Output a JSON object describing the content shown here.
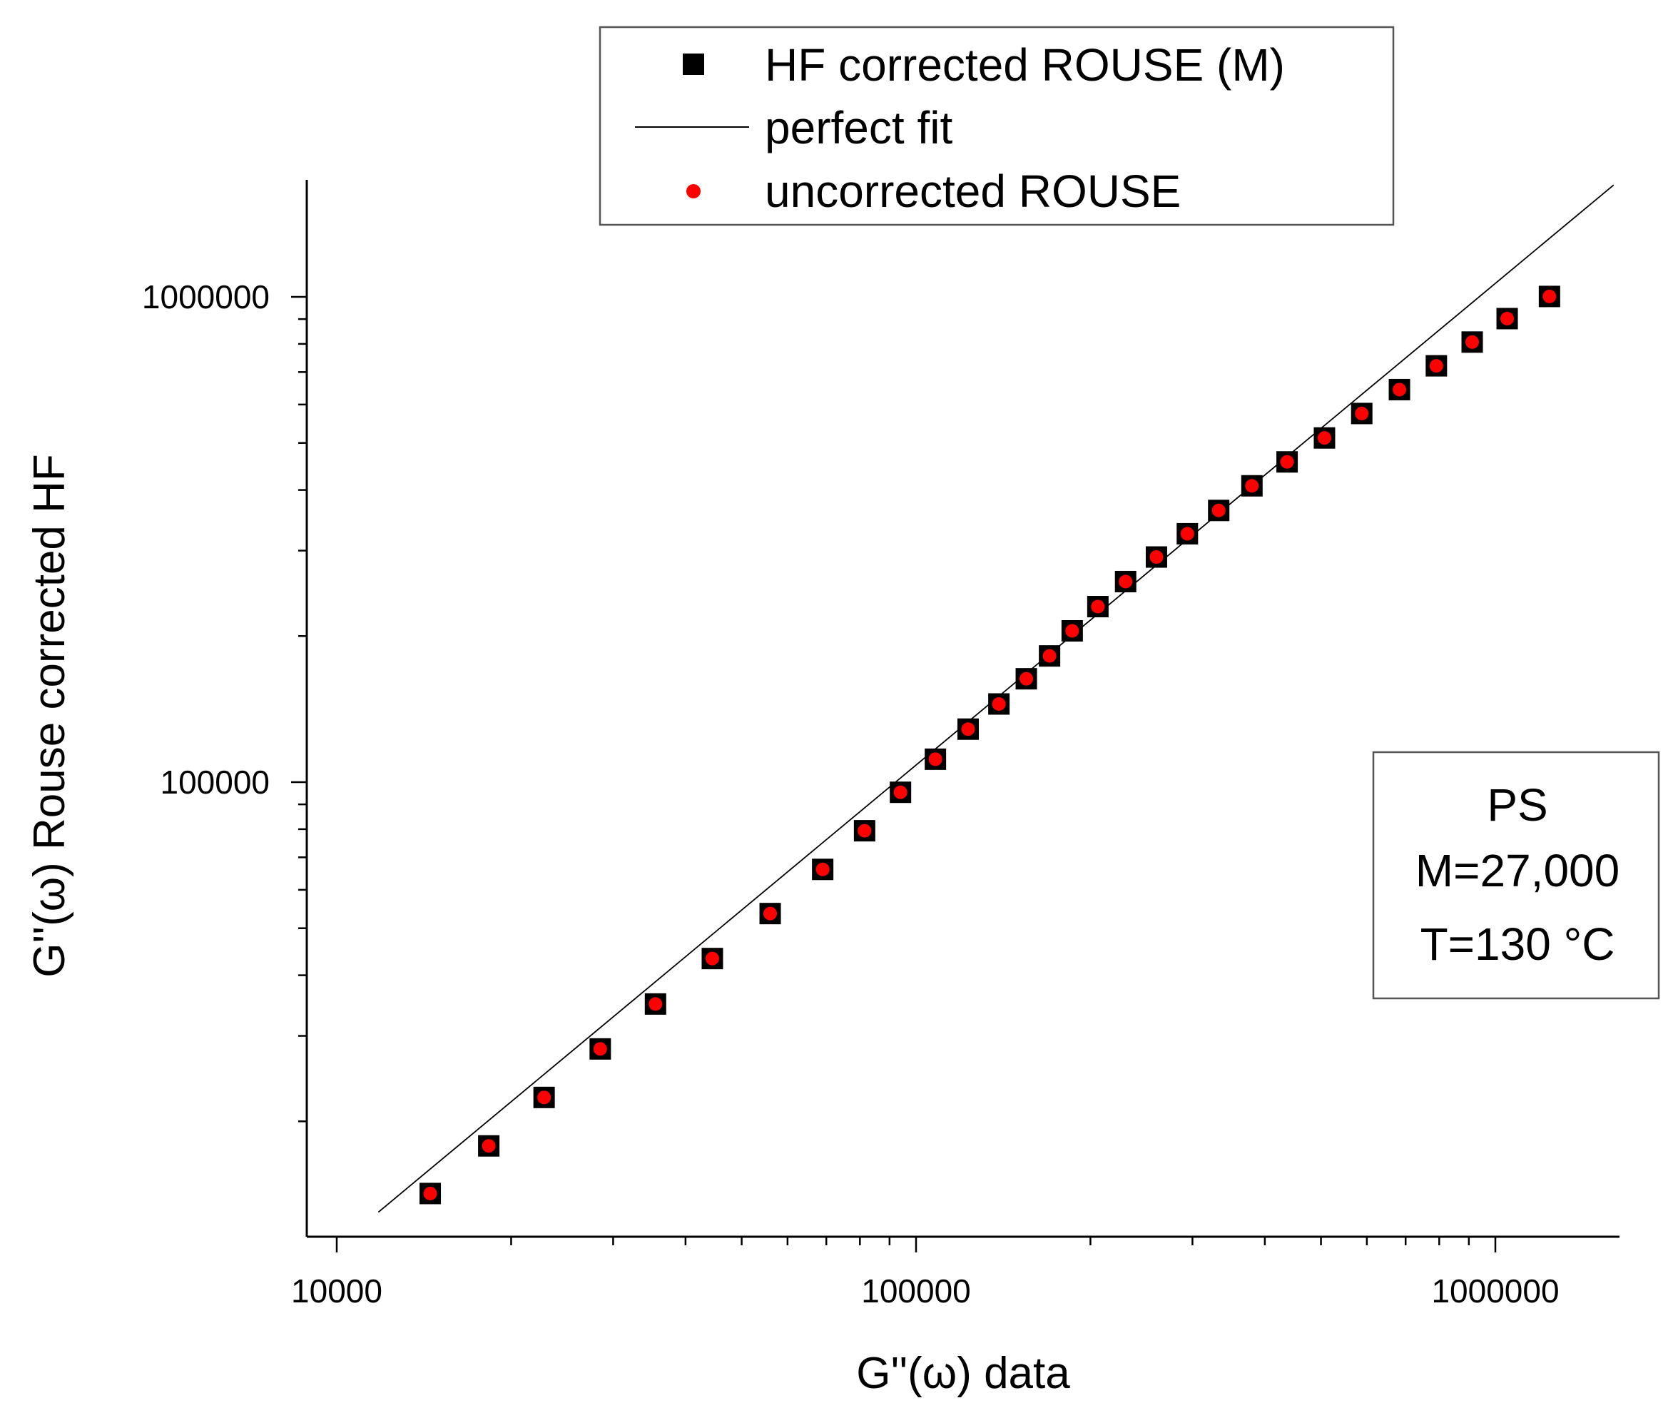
{
  "chart_data": {
    "type": "scatter",
    "xscale": "log",
    "yscale": "log",
    "xlabel": "G''(ω) data",
    "ylabel": "G''(ω) Rouse corrected HF",
    "xlim": [
      9000,
      1600000
    ],
    "ylim": [
      13000,
      1600000
    ],
    "xticks": [
      10000,
      100000,
      1000000
    ],
    "xtick_labels": [
      "10000",
      "100000",
      "1000000"
    ],
    "yticks": [
      100000,
      1000000
    ],
    "ytick_labels": [
      "100000",
      "1000000"
    ],
    "series": [
      {
        "name": "HF corrected ROUSE (M)",
        "marker": "square",
        "color": "#000000",
        "points": [
          [
            14500,
            14200
          ],
          [
            18300,
            17800
          ],
          [
            22800,
            22400
          ],
          [
            28500,
            28200
          ],
          [
            35500,
            34900
          ],
          [
            44500,
            43300
          ],
          [
            56000,
            53600
          ],
          [
            69000,
            66100
          ],
          [
            81500,
            79400
          ],
          [
            94000,
            95300
          ],
          [
            108000,
            111500
          ],
          [
            123000,
            128600
          ],
          [
            139000,
            144900
          ],
          [
            155000,
            163300
          ],
          [
            170000,
            182000
          ],
          [
            186000,
            205000
          ],
          [
            206000,
            230000
          ],
          [
            230000,
            259000
          ],
          [
            260000,
            291000
          ],
          [
            294000,
            325000
          ],
          [
            333000,
            363000
          ],
          [
            380000,
            408000
          ],
          [
            437000,
            457000
          ],
          [
            507000,
            512000
          ],
          [
            588000,
            575000
          ],
          [
            683000,
            644000
          ],
          [
            791000,
            721000
          ],
          [
            912000,
            807000
          ],
          [
            1048000,
            902000
          ],
          [
            1240000,
            1002000
          ]
        ]
      },
      {
        "name": "perfect fit",
        "marker": "line",
        "color": "#000000",
        "points": [
          [
            11800,
            13000
          ],
          [
            1600000,
            1700000
          ]
        ]
      },
      {
        "name": "uncorrected ROUSE",
        "marker": "circle",
        "color": "#ff0000",
        "points": [
          [
            14500,
            14200
          ],
          [
            18300,
            17800
          ],
          [
            22800,
            22400
          ],
          [
            28500,
            28200
          ],
          [
            35500,
            34900
          ],
          [
            44500,
            43300
          ],
          [
            56000,
            53600
          ],
          [
            69000,
            66100
          ],
          [
            81500,
            79400
          ],
          [
            94000,
            95300
          ],
          [
            108000,
            111500
          ],
          [
            123000,
            128600
          ],
          [
            139000,
            144900
          ],
          [
            155000,
            163300
          ],
          [
            170000,
            182000
          ],
          [
            186000,
            205000
          ],
          [
            206000,
            230000
          ],
          [
            230000,
            259000
          ],
          [
            260000,
            291000
          ],
          [
            294000,
            325000
          ],
          [
            333000,
            363000
          ],
          [
            380000,
            408000
          ],
          [
            437000,
            457000
          ],
          [
            507000,
            512000
          ],
          [
            588000,
            575000
          ],
          [
            683000,
            644000
          ],
          [
            791000,
            721000
          ],
          [
            912000,
            807000
          ],
          [
            1048000,
            902000
          ],
          [
            1240000,
            1002000
          ]
        ]
      }
    ],
    "legend": {
      "placement": "top-center",
      "entries": [
        "HF corrected ROUSE (M)",
        "perfect fit",
        "uncorrected ROUSE"
      ]
    },
    "annotation": {
      "lines": [
        "PS",
        "M=27,000",
        "T=130 °C"
      ]
    },
    "grid": false
  }
}
